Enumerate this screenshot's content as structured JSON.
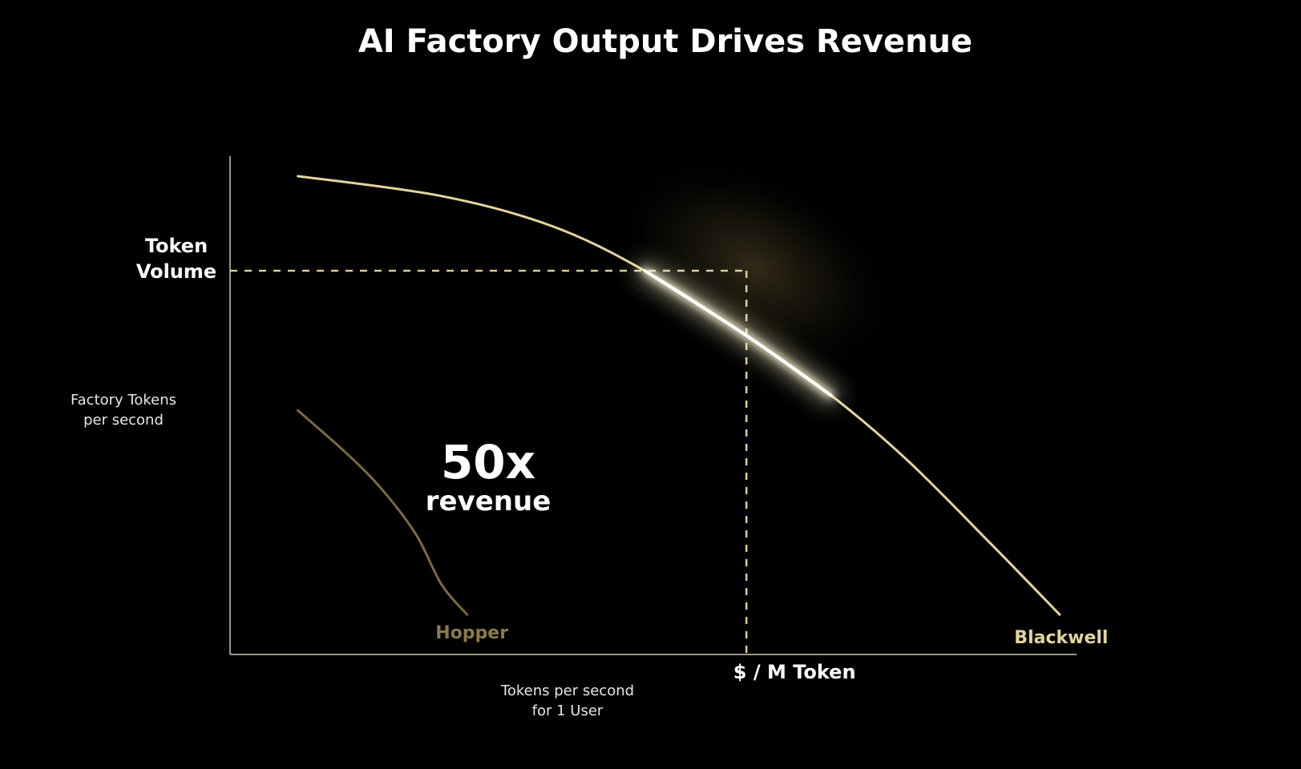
{
  "page": {
    "title": "AI Factory Output Drives Revenue"
  },
  "colors": {
    "background": "#000000",
    "text": "#ffffff",
    "axis": "#c9c9b8",
    "blackwell": "#e4d49c",
    "hopper": "#7b6a3f",
    "hopper_label": "#8b7a4a",
    "blackwell_label": "#e4d49c",
    "glow": "#fff5c8"
  },
  "chart_data": {
    "type": "line",
    "title": "AI Factory Output Drives Revenue",
    "xlabel": "Tokens per second\nfor 1 User",
    "ylabel": "Factory Tokens\nper second",
    "xlim": [
      0,
      100
    ],
    "ylim": [
      0,
      100
    ],
    "grid": false,
    "series": [
      {
        "name": "Hopper",
        "color": "#7b6a3f",
        "x": [
          8,
          14,
          18,
          22,
          25,
          28
        ],
        "y": [
          49,
          40,
          33,
          24,
          14,
          8
        ]
      },
      {
        "name": "Blackwell",
        "color": "#e4d49c",
        "x": [
          8,
          25,
          38,
          49,
          61,
          71,
          80,
          90,
          98
        ],
        "y": [
          96,
          92,
          86,
          77,
          64,
          52,
          39,
          22,
          8
        ]
      }
    ],
    "annotations": {
      "multiplier": "50x",
      "multiplier_caption": "revenue",
      "y_marker_label": "Token\nVolume",
      "x_marker_label": "$ / M Token",
      "marker_point": {
        "x": 61,
        "y": 77
      }
    }
  }
}
